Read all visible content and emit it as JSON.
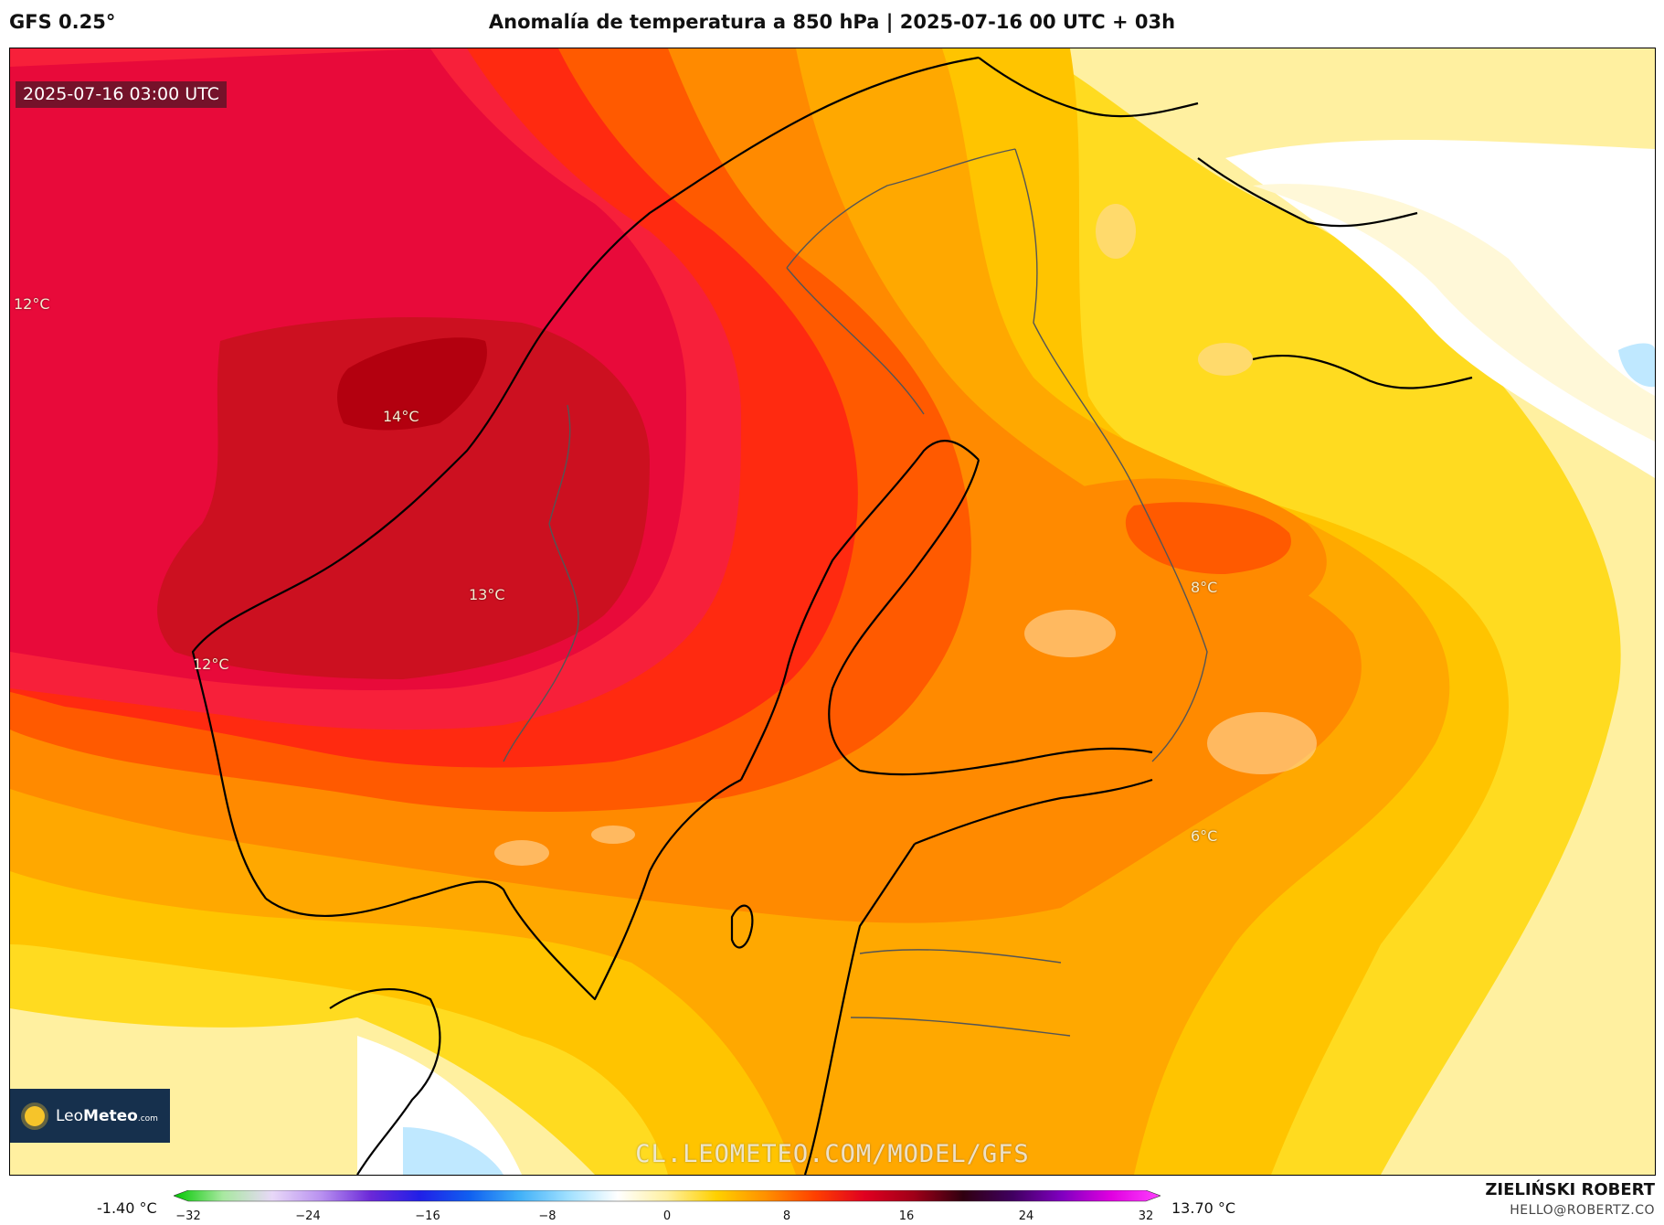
{
  "header": {
    "model": "GFS 0.25°",
    "title": "Anomalía de temperatura a 850 hPa | 2025-07-16 00 UTC + 03h"
  },
  "map": {
    "timestamp": "2025-07-16 03:00 UTC",
    "labels": [
      "12°C",
      "14°C",
      "13°C",
      "12°C",
      "8°C",
      "6°C"
    ],
    "watermark": "CL.LEOMETEO.COM/MODEL/GFS",
    "colors": {
      "darkest": "#b3000f",
      "dark_red": "#cc1020",
      "crimson": "#e80a3a",
      "red": "#f7203a",
      "red_orange": "#ff2a10",
      "orange_red": "#ff5a00",
      "orange": "#ff8a00",
      "orange_light": "#ffa800",
      "gold": "#ffc400",
      "yellow": "#ffdb20",
      "pale_yellow": "#fff0a0",
      "cream": "#fff8d8",
      "white": "#ffffff",
      "light_blue": "#bfe8ff"
    }
  },
  "logo": {
    "icon": "sun-icon",
    "name_light": "Leo",
    "name_bold": "Meteo",
    "suffix": ".com"
  },
  "colorbar": {
    "min_label": "-1.40 °C",
    "max_label": "13.70 °C",
    "ticks": [
      "−32",
      "−24",
      "−16",
      "−8",
      "0",
      "8",
      "16",
      "24",
      "32"
    ],
    "tick_values": [
      -32,
      -24,
      -16,
      -8,
      0,
      8,
      16,
      24,
      32
    ],
    "range": [
      -32,
      32
    ],
    "stops": [
      "#00c800",
      "#a8e8a0",
      "#e8d8f8",
      "#b890f0",
      "#6a28d8",
      "#2020e8",
      "#1060f0",
      "#40b0f8",
      "#a0e0ff",
      "#ffffff",
      "#fff0a0",
      "#ffd000",
      "#ff9000",
      "#ff4000",
      "#e00020",
      "#a00018",
      "#300010",
      "#400060",
      "#8000c0",
      "#e000e0",
      "#ff40ff"
    ]
  },
  "credits": {
    "author": "ZIELIŃSKI ROBERT",
    "email": "HELLO@ROBERTZ.CO"
  }
}
